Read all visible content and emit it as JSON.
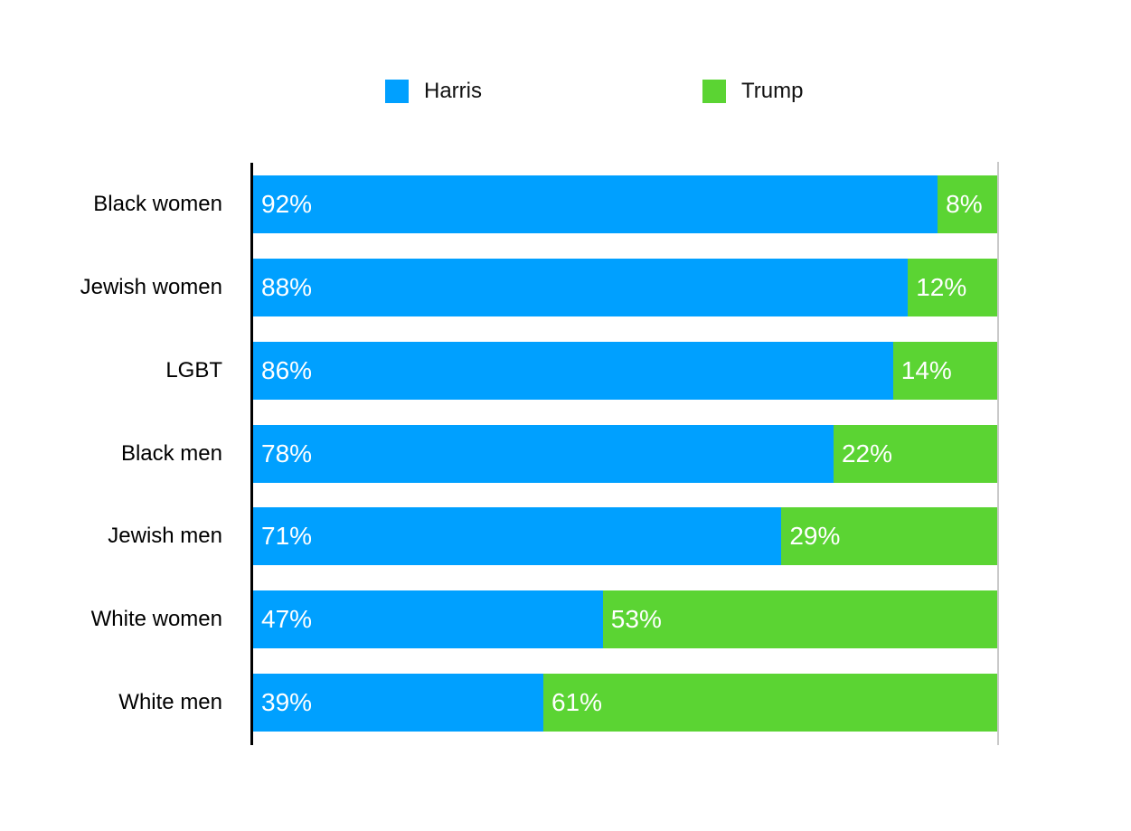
{
  "chart_data": {
    "type": "bar",
    "orientation": "horizontal",
    "stacked": true,
    "title": "",
    "xlabel": "",
    "ylabel": "",
    "xlim": [
      0,
      100
    ],
    "grid": false,
    "legend_position": "top",
    "value_suffix": "%",
    "axis_line_color": "#000000",
    "plot_right_border_color": "#c9c9c9",
    "value_label_color": "#ffffff",
    "categories": [
      "Black women",
      "Jewish women",
      "LGBT",
      "Black men",
      "Jewish men",
      "White women",
      "White men"
    ],
    "series": [
      {
        "name": "Harris",
        "color": "#00a0ff",
        "values": [
          92,
          88,
          86,
          78,
          71,
          47,
          39
        ]
      },
      {
        "name": "Trump",
        "color": "#5bd433",
        "values": [
          8,
          12,
          14,
          22,
          29,
          53,
          61
        ]
      }
    ]
  }
}
